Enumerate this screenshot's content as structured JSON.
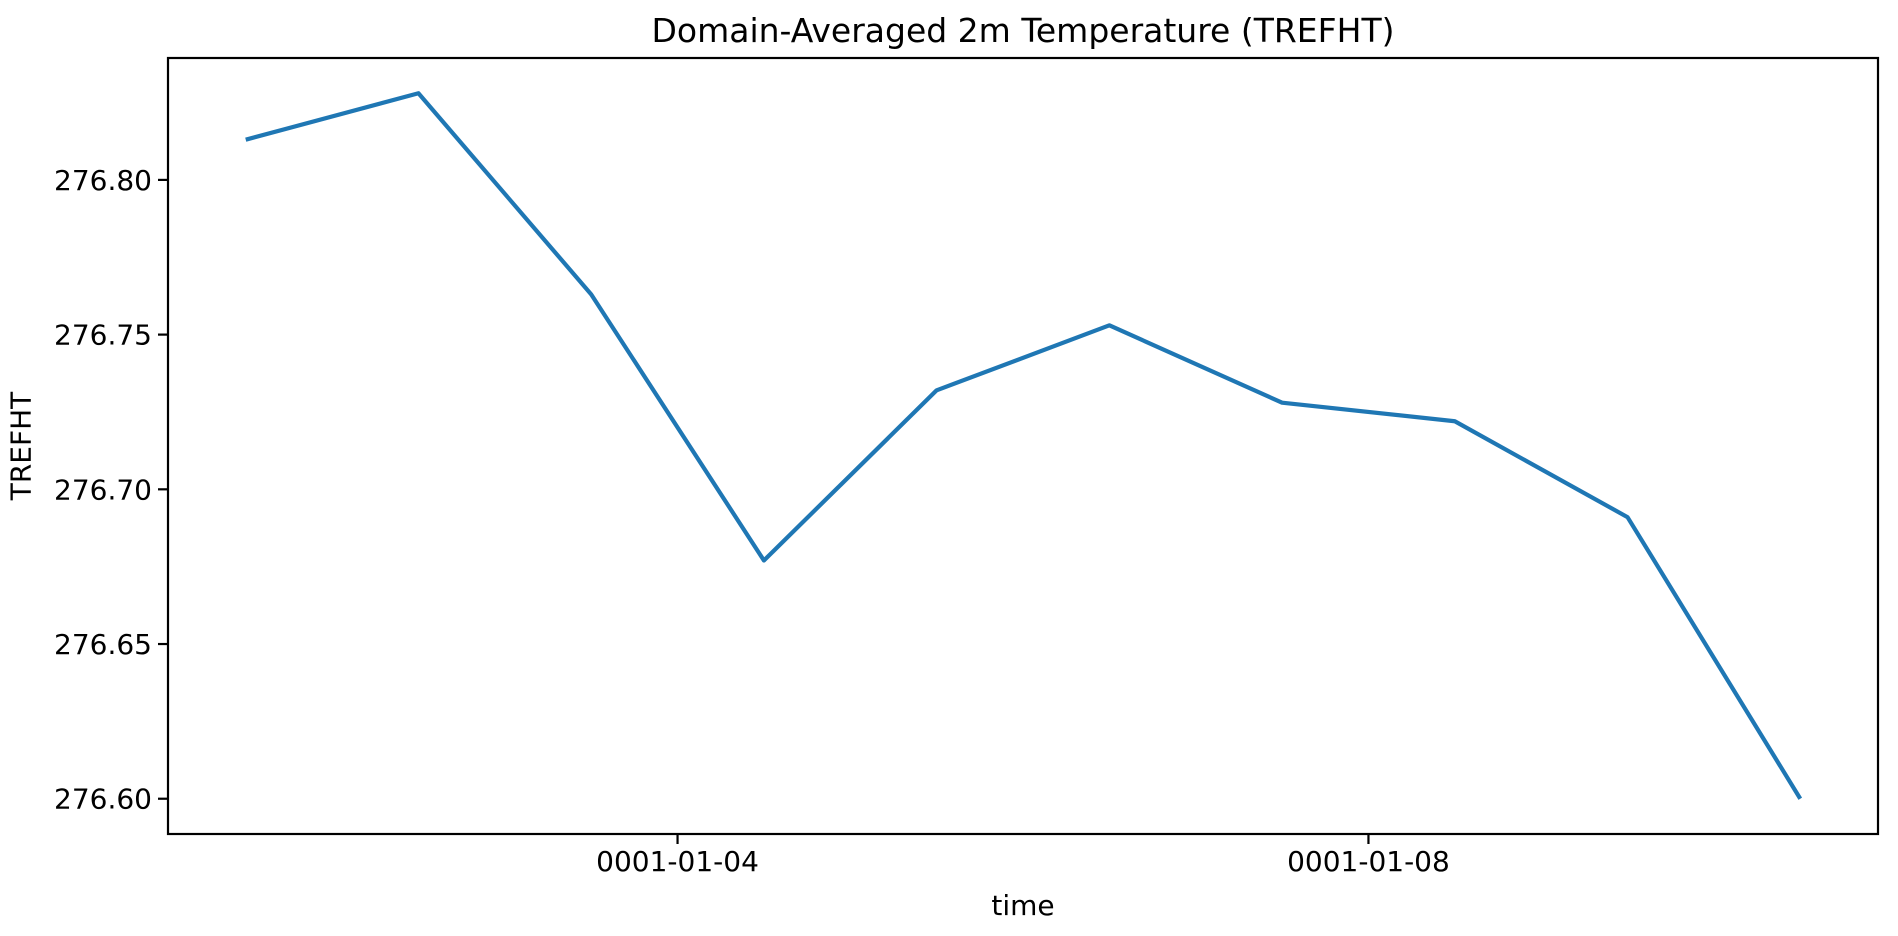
{
  "chart_data": {
    "type": "line",
    "title": "Domain-Averaged 2m Temperature (TREFHT)",
    "xlabel": "time",
    "ylabel": "TREFHT",
    "series": [
      {
        "name": "TREFHT",
        "x": [
          "0001-01-01 12:00",
          "0001-01-02 12:00",
          "0001-01-03 12:00",
          "0001-01-04 12:00",
          "0001-01-05 12:00",
          "0001-01-06 12:00",
          "0001-01-07 12:00",
          "0001-01-08 12:00",
          "0001-01-09 12:00",
          "0001-01-10 12:00"
        ],
        "x_day_offsets": [
          0.5,
          1.5,
          2.5,
          3.5,
          4.5,
          5.5,
          6.5,
          7.5,
          8.5,
          9.5
        ],
        "values": [
          276.813,
          276.828,
          276.763,
          276.677,
          276.732,
          276.753,
          276.728,
          276.722,
          276.691,
          276.6
        ]
      }
    ],
    "x_ticks": [
      {
        "day_offset": 3,
        "label": "0001-01-04"
      },
      {
        "day_offset": 7,
        "label": "0001-01-08"
      }
    ],
    "y_ticks": [
      {
        "value": 276.6,
        "label": "276.60"
      },
      {
        "value": 276.65,
        "label": "276.65"
      },
      {
        "value": 276.7,
        "label": "276.70"
      },
      {
        "value": 276.75,
        "label": "276.75"
      },
      {
        "value": 276.8,
        "label": "276.80"
      }
    ],
    "xlim_days": [
      0.05,
      9.95
    ],
    "ylim": [
      276.5886,
      276.8394
    ],
    "grid": false,
    "legend": "none",
    "line_color": "#1f77b4",
    "axis_color": "#000000",
    "background_color": "#ffffff"
  }
}
